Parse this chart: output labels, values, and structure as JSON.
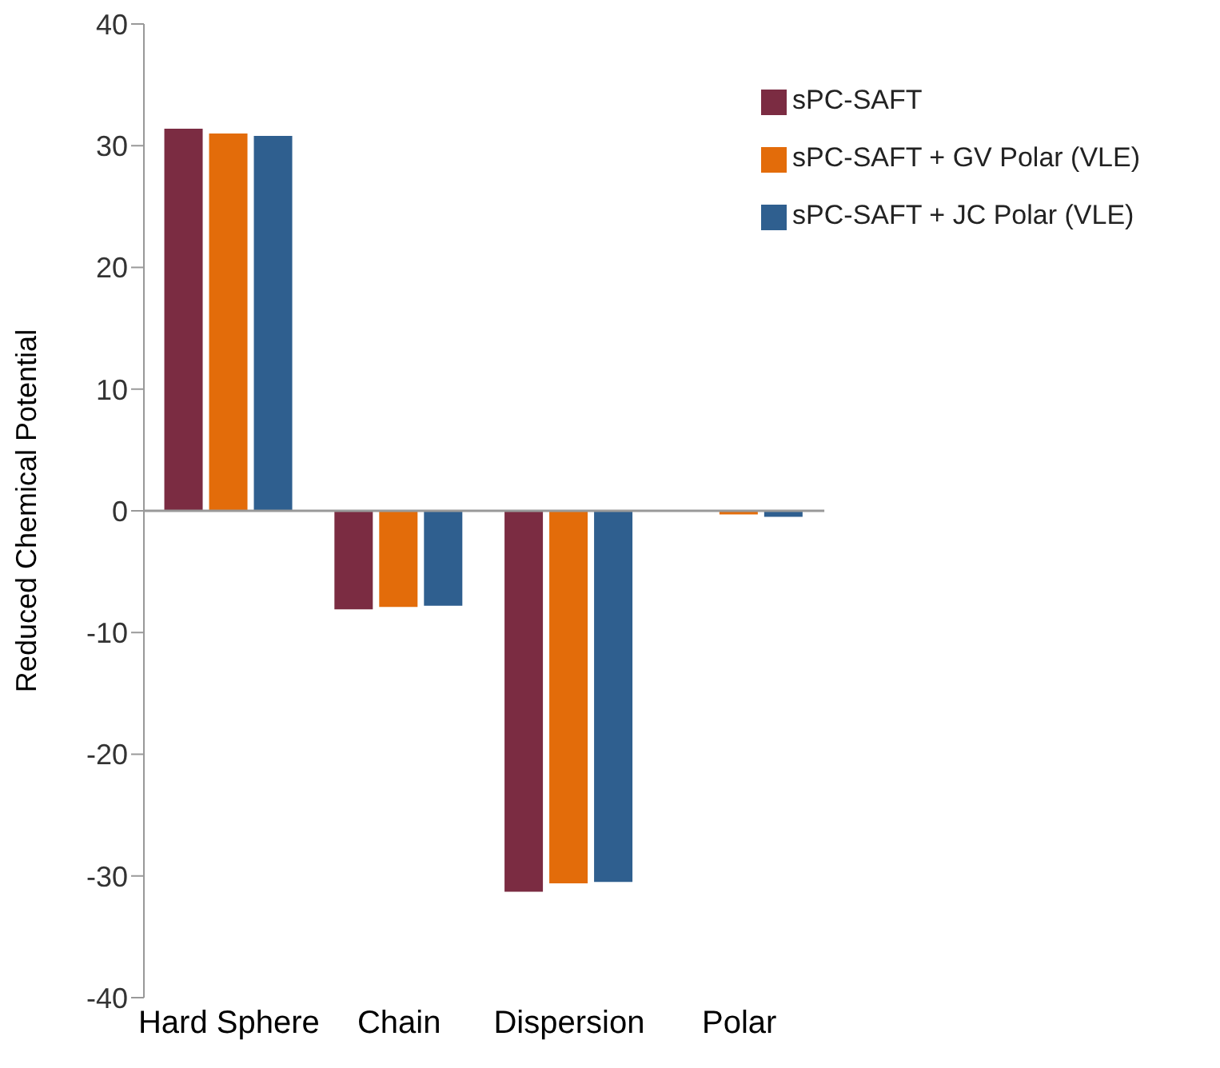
{
  "chart_data": {
    "type": "bar",
    "ylabel": "Reduced  Chemical Potential",
    "categories": [
      "Hard Sphere",
      "Chain",
      "Dispersion",
      "Polar"
    ],
    "series": [
      {
        "name": "sPC-SAFT",
        "color": "#7b2c42",
        "values": [
          31.4,
          -8.1,
          -31.3,
          0
        ]
      },
      {
        "name": "sPC-SAFT + GV Polar (VLE)",
        "color": "#e36c0a",
        "values": [
          31.0,
          -7.9,
          -30.6,
          -0.3
        ]
      },
      {
        "name": "sPC-SAFT + JC Polar (VLE)",
        "color": "#2f5f8f",
        "values": [
          30.8,
          -7.8,
          -30.5,
          -0.5
        ]
      }
    ],
    "ylim": [
      -40,
      40
    ],
    "yticks": [
      -40,
      -30,
      -20,
      -10,
      0,
      10,
      20,
      30,
      40
    ],
    "ref_lines": [
      {
        "axis": "y",
        "value": 0,
        "color": "#999999"
      }
    ],
    "legend": "top right"
  }
}
